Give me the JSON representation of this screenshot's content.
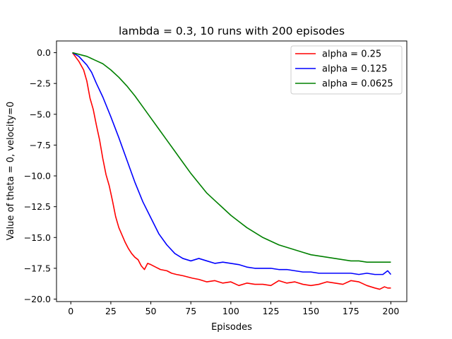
{
  "chart_data": {
    "type": "line",
    "title": "lambda = 0.3, 10 runs with 200 episodes",
    "xlabel": "Episodes",
    "ylabel": "Value of theta = 0, velocity=0",
    "xlim": [
      -8.95,
      209.95
    ],
    "ylim": [
      -20.2,
      0.95
    ],
    "xticks": [
      0,
      25,
      50,
      75,
      100,
      125,
      150,
      175,
      200
    ],
    "xtick_labels": [
      "0",
      "25",
      "50",
      "75",
      "100",
      "125",
      "150",
      "175",
      "200"
    ],
    "yticks": [
      0,
      -2.5,
      -5,
      -7.5,
      -10,
      -12.5,
      -15,
      -17.5,
      -20
    ],
    "ytick_labels": [
      "0.0",
      "−2.5",
      "−5.0",
      "−7.5",
      "−10.0",
      "−12.5",
      "−15.0",
      "−17.5",
      "−20.0"
    ],
    "grid": false,
    "legend": "top-right",
    "series": [
      {
        "name": "alpha = 0.25",
        "color": "#ff0000",
        "x": [
          1,
          5,
          8,
          10,
          12,
          14,
          16,
          18,
          20,
          22,
          24,
          26,
          28,
          30,
          32,
          34,
          36,
          38,
          40,
          42,
          44,
          46,
          48,
          50,
          53,
          56,
          60,
          63,
          66,
          70,
          73,
          76,
          80,
          85,
          90,
          95,
          100,
          105,
          110,
          115,
          120,
          125,
          130,
          135,
          140,
          145,
          150,
          155,
          160,
          165,
          170,
          175,
          180,
          185,
          190,
          193,
          196,
          198,
          200
        ],
        "y": [
          0,
          -0.7,
          -1.4,
          -2.3,
          -3.7,
          -4.6,
          -5.9,
          -7.1,
          -8.6,
          -9.9,
          -10.8,
          -12.0,
          -13.3,
          -14.2,
          -14.8,
          -15.4,
          -15.9,
          -16.3,
          -16.6,
          -16.8,
          -17.3,
          -17.6,
          -17.1,
          -17.2,
          -17.4,
          -17.6,
          -17.7,
          -17.9,
          -18.0,
          -18.1,
          -18.2,
          -18.3,
          -18.4,
          -18.6,
          -18.5,
          -18.7,
          -18.6,
          -18.9,
          -18.7,
          -18.8,
          -18.8,
          -18.9,
          -18.5,
          -18.7,
          -18.6,
          -18.8,
          -18.9,
          -18.8,
          -18.6,
          -18.7,
          -18.8,
          -18.5,
          -18.6,
          -18.9,
          -19.1,
          -19.2,
          -19.0,
          -19.1,
          -19.1
        ]
      },
      {
        "name": "alpha = 0.125",
        "color": "#0000ff",
        "x": [
          1,
          5,
          10,
          13,
          16,
          20,
          25,
          30,
          35,
          40,
          45,
          50,
          55,
          60,
          65,
          70,
          75,
          80,
          85,
          90,
          95,
          100,
          105,
          110,
          115,
          120,
          125,
          130,
          135,
          140,
          145,
          150,
          155,
          160,
          165,
          170,
          175,
          180,
          185,
          190,
          195,
          198,
          200
        ],
        "y": [
          0,
          -0.3,
          -1.0,
          -1.6,
          -2.5,
          -3.6,
          -5.2,
          -6.9,
          -8.7,
          -10.5,
          -12.1,
          -13.4,
          -14.7,
          -15.6,
          -16.3,
          -16.7,
          -16.9,
          -16.7,
          -16.9,
          -17.1,
          -17.0,
          -17.1,
          -17.2,
          -17.4,
          -17.5,
          -17.5,
          -17.5,
          -17.6,
          -17.6,
          -17.7,
          -17.8,
          -17.8,
          -17.9,
          -17.9,
          -17.9,
          -17.9,
          -17.9,
          -18.0,
          -17.9,
          -18.0,
          -18.0,
          -17.7,
          -18.0
        ]
      },
      {
        "name": "alpha = 0.0625",
        "color": "#008000",
        "x": [
          1,
          10,
          15,
          20,
          25,
          30,
          35,
          40,
          45,
          50,
          55,
          60,
          65,
          70,
          75,
          80,
          85,
          90,
          95,
          100,
          105,
          110,
          115,
          120,
          125,
          130,
          135,
          140,
          145,
          150,
          155,
          160,
          165,
          170,
          175,
          180,
          185,
          190,
          195,
          200
        ],
        "y": [
          0,
          -0.3,
          -0.6,
          -0.9,
          -1.4,
          -2.0,
          -2.7,
          -3.5,
          -4.4,
          -5.3,
          -6.2,
          -7.1,
          -8.0,
          -8.9,
          -9.8,
          -10.6,
          -11.4,
          -12.0,
          -12.6,
          -13.2,
          -13.7,
          -14.2,
          -14.6,
          -15.0,
          -15.3,
          -15.6,
          -15.8,
          -16.0,
          -16.2,
          -16.4,
          -16.5,
          -16.6,
          -16.7,
          -16.8,
          -16.9,
          -16.9,
          -17.0,
          -17.0,
          -17.0,
          -17.0
        ]
      }
    ]
  }
}
